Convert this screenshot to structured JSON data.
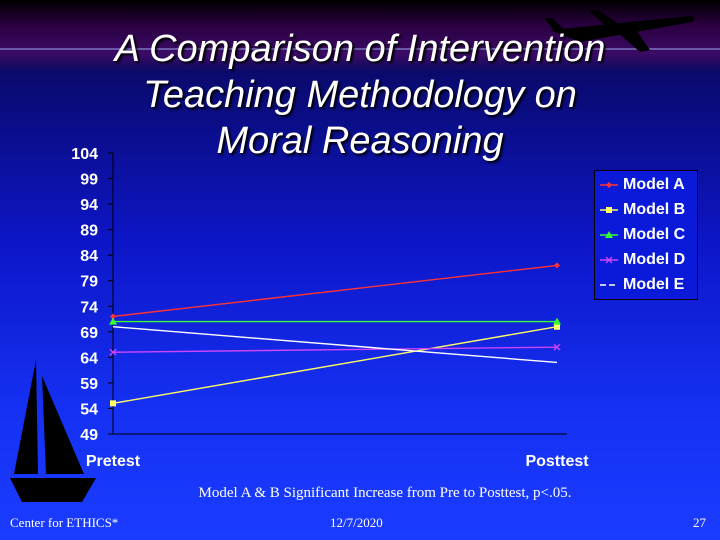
{
  "slide": {
    "title_lines": [
      "A Comparison of Intervention",
      "Teaching Methodology on",
      "Moral Reasoning"
    ],
    "caption": "Model A & B Significant Increase from Pre to Posttest, p<.05.",
    "footer_left": "Center for ETHICS*",
    "footer_date": "12/7/2020",
    "page_number": "27",
    "icons": [
      "airplane-icon",
      "sailboat-icon"
    ]
  },
  "chart_data": {
    "type": "line",
    "categories": [
      "Pretest",
      "Posttest"
    ],
    "ylim": [
      49,
      104
    ],
    "yticks": [
      104,
      99,
      94,
      89,
      84,
      79,
      74,
      69,
      64,
      59,
      54,
      49
    ],
    "grid": false,
    "legend_position": "right",
    "series": [
      {
        "name": "Model A",
        "values": [
          72,
          82
        ],
        "color": "#ff3333",
        "marker": "diamond",
        "dash": "solid"
      },
      {
        "name": "Model B",
        "values": [
          55,
          70
        ],
        "color": "#ffff66",
        "marker": "square",
        "dash": "solid"
      },
      {
        "name": "Model C",
        "values": [
          71,
          71
        ],
        "color": "#33ff33",
        "marker": "triangle",
        "dash": "solid"
      },
      {
        "name": "Model D",
        "values": [
          65,
          66
        ],
        "color": "#cc44ff",
        "marker": "x",
        "dash": "solid"
      },
      {
        "name": "Model E",
        "values": [
          70,
          63
        ],
        "color": "#ffffff",
        "marker": "none",
        "dash": "dashed"
      }
    ]
  }
}
